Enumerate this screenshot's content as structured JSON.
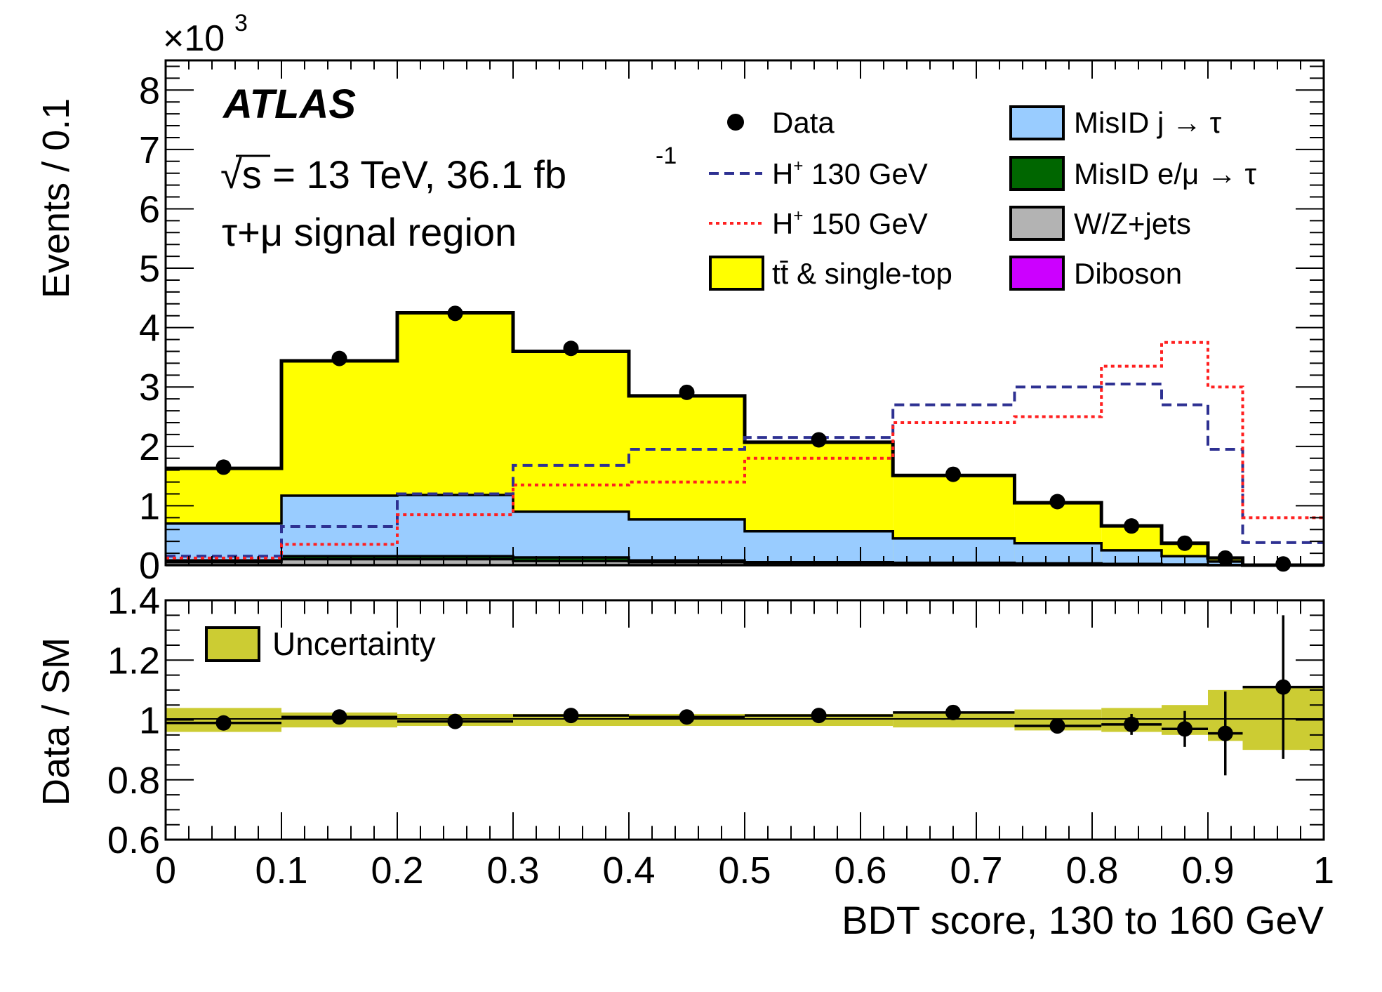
{
  "chart_data": {
    "type": "histogram-with-ratio",
    "experiment": "ATLAS",
    "energy_label": "√s = 13 TeV, 36.1 fb",
    "lumi_exponent": "-1",
    "region_label": "τ+μ signal region",
    "x_label": "BDT score, 130 to 160 GeV",
    "y_label_main": "Events / 0.1",
    "y_label_ratio": "Data / SM",
    "scale_label": "×10",
    "scale_exponent": "3",
    "xlim": [
      0,
      1
    ],
    "ylim_main": [
      0,
      8.5
    ],
    "ylim_ratio": [
      0.6,
      1.4
    ],
    "x_ticks": [
      "0",
      "0.1",
      "0.2",
      "0.3",
      "0.4",
      "0.5",
      "0.6",
      "0.7",
      "0.8",
      "0.9",
      "1"
    ],
    "y_ticks_main": [
      "0",
      "1",
      "2",
      "3",
      "4",
      "5",
      "6",
      "7",
      "8"
    ],
    "y_ticks_ratio": [
      "0.6",
      "0.8",
      "1",
      "1.2",
      "1.4"
    ],
    "bin_edges": [
      0,
      0.1,
      0.2,
      0.3,
      0.4,
      0.5,
      0.628,
      0.733,
      0.808,
      0.86,
      0.9,
      0.93,
      1.0
    ],
    "stack_values": {
      "diboson": [
        0.0,
        0.0,
        0.0,
        0.0,
        0.0,
        0.0,
        0.0,
        0.0,
        0.0,
        0.0,
        0.0,
        0.0
      ],
      "wz_jets": [
        0.05,
        0.1,
        0.1,
        0.07,
        0.05,
        0.04,
        0.03,
        0.02,
        0.02,
        0.01,
        0.0,
        0.0
      ],
      "misid_emu": [
        0.08,
        0.15,
        0.15,
        0.13,
        0.08,
        0.05,
        0.04,
        0.03,
        0.02,
        0.01,
        0.0,
        0.0
      ],
      "misid_j": [
        0.7,
        1.17,
        1.18,
        0.9,
        0.77,
        0.57,
        0.45,
        0.37,
        0.25,
        0.15,
        0.06,
        0.0
      ],
      "ttbar_total": [
        1.63,
        3.44,
        4.25,
        3.6,
        2.85,
        2.07,
        1.51,
        1.05,
        0.66,
        0.37,
        0.12,
        0.0
      ]
    },
    "signal_130": [
      0.15,
      0.65,
      1.2,
      1.68,
      1.95,
      2.15,
      2.7,
      3.0,
      3.05,
      2.7,
      1.95,
      0.38
    ],
    "signal_150": [
      0.12,
      0.35,
      0.85,
      1.35,
      1.4,
      1.8,
      2.4,
      2.5,
      3.35,
      3.75,
      3.0,
      0.8
    ],
    "data_x": [
      0.05,
      0.15,
      0.25,
      0.35,
      0.45,
      0.564,
      0.68,
      0.77,
      0.834,
      0.88,
      0.915,
      0.965
    ],
    "data_y": [
      1.65,
      3.48,
      4.24,
      3.65,
      2.91,
      2.11,
      1.53,
      1.07,
      0.66,
      0.37,
      0.12,
      0.02
    ],
    "ratio_values": [
      0.99,
      1.01,
      0.995,
      1.015,
      1.01,
      1.015,
      1.025,
      0.98,
      0.985,
      0.97,
      0.955,
      1.11
    ],
    "ratio_errors": [
      0.01,
      0.01,
      0.01,
      0.01,
      0.01,
      0.01,
      0.015,
      0.025,
      0.035,
      0.06,
      0.14,
      0.24
    ],
    "uncertainty_band": [
      [
        0.96,
        1.04
      ],
      [
        0.975,
        1.025
      ],
      [
        0.98,
        1.02
      ],
      [
        0.98,
        1.02
      ],
      [
        0.98,
        1.02
      ],
      [
        0.98,
        1.02
      ],
      [
        0.975,
        1.025
      ],
      [
        0.965,
        1.035
      ],
      [
        0.96,
        1.04
      ],
      [
        0.95,
        1.05
      ],
      [
        0.93,
        1.1
      ],
      [
        0.9,
        1.11
      ]
    ],
    "legend": {
      "data": "Data",
      "h130": "H",
      "h130_rest": " 130 GeV",
      "h150": "H",
      "h150_rest": " 150 GeV",
      "ttbar_sym": "tt̄",
      "ttbar_rest": " & single-top",
      "misid_j": "MisID j → τ",
      "misid_emu": "MisID e/μ → τ",
      "wz": "W/Z+jets",
      "diboson": "Diboson",
      "uncertainty": "Uncertainty",
      "plus": "+"
    },
    "colors": {
      "ttbar": "#ffff00",
      "misid_j": "#99ccff",
      "misid_emu": "#006600",
      "wz": "#b3b3b3",
      "diboson": "#cc00ff",
      "h130": "#2e3192",
      "h150": "#ff2020",
      "band": "#cccc33"
    }
  }
}
